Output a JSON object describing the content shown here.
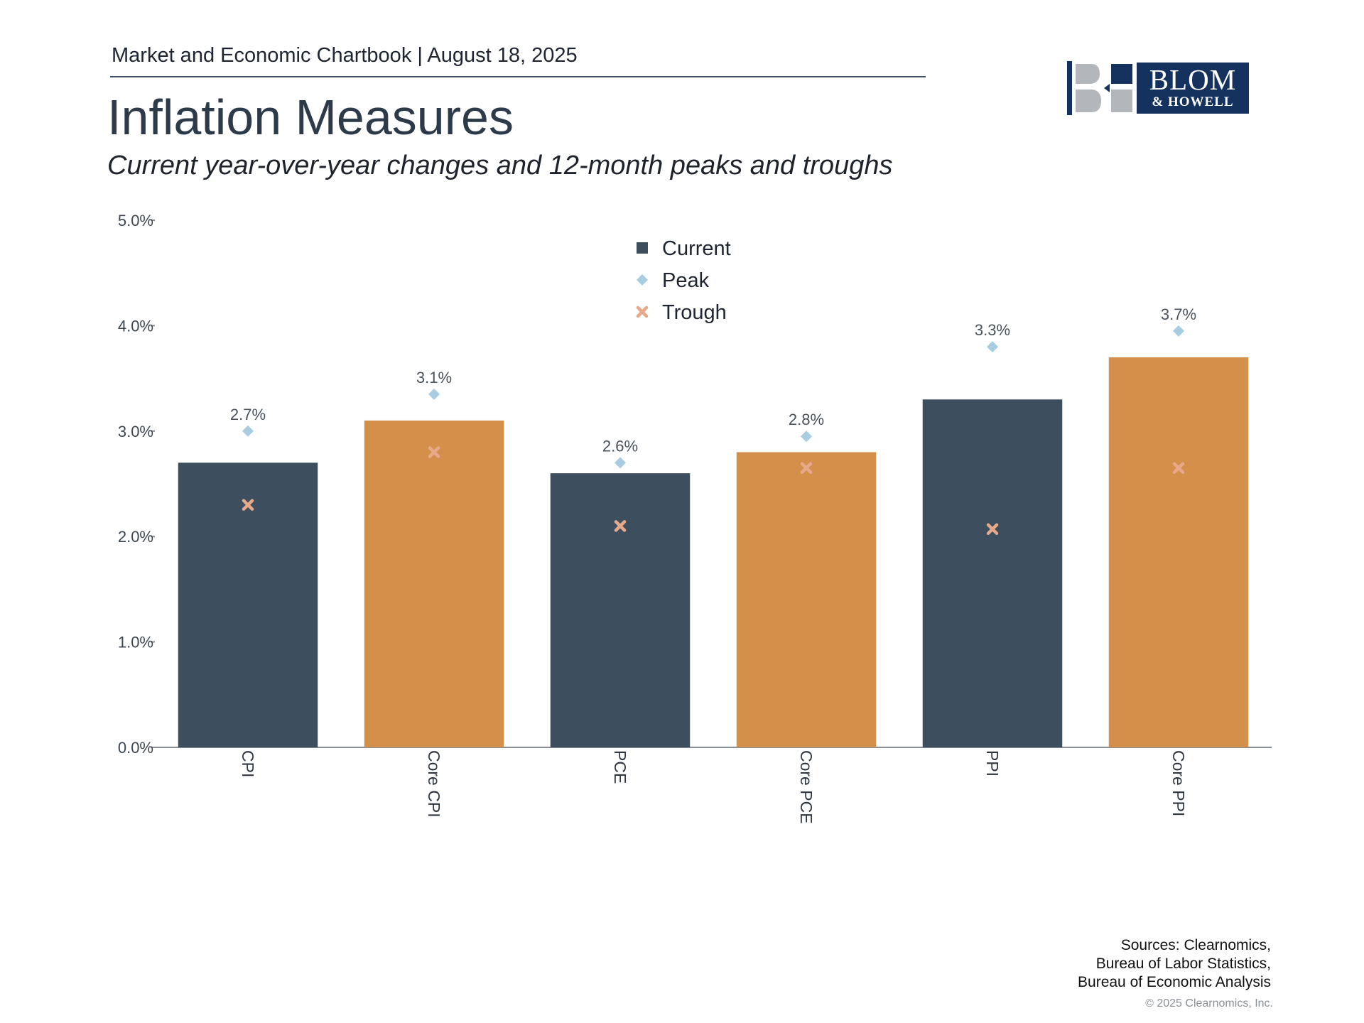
{
  "header": {
    "book": "Market and Economic Chartbook | August 18, 2025",
    "title": "Inflation Measures",
    "subtitle": "Current year-over-year changes and 12-month peaks and troughs"
  },
  "logo": {
    "name": "BLOM",
    "sub": "& HOWELL",
    "colors": {
      "navy": "#15325f",
      "gray": "#b3b6ba"
    }
  },
  "footer": {
    "sources": [
      "Sources: Clearnomics,",
      "Bureau of Labor Statistics,",
      "Bureau of Economic Analysis"
    ],
    "copyright": "© 2025 Clearnomics, Inc."
  },
  "chart_data": {
    "type": "bar",
    "categories": [
      "CPI",
      "Core CPI",
      "PCE",
      "Core PCE",
      "PPI",
      "Core PPI"
    ],
    "series": [
      {
        "name": "Current",
        "values": [
          2.7,
          3.1,
          2.6,
          2.8,
          3.3,
          3.7
        ],
        "data_labels": [
          "2.7%",
          "3.1%",
          "2.6%",
          "2.8%",
          "3.3%",
          "3.7%"
        ]
      },
      {
        "name": "Peak",
        "values": [
          3.0,
          3.35,
          2.7,
          2.95,
          3.8,
          3.95
        ]
      },
      {
        "name": "Trough",
        "values": [
          2.3,
          2.8,
          2.1,
          2.65,
          2.07,
          2.65
        ]
      }
    ],
    "bar_colors": [
      "#3d4f5f",
      "#d48f4b",
      "#3d4f5f",
      "#d48f4b",
      "#3d4f5f",
      "#d48f4b"
    ],
    "peak_color": "#a9cde0",
    "trough_color": "#e7a98a",
    "current_legend_color": "#3d4f5f",
    "ylim": [
      0,
      5
    ],
    "yticks": [
      "0.0%",
      "1.0%",
      "2.0%",
      "3.0%",
      "4.0%",
      "5.0%"
    ],
    "legend": {
      "position": "top-center",
      "labels": [
        "Current",
        "Peak",
        "Trough"
      ]
    },
    "grid": false
  }
}
